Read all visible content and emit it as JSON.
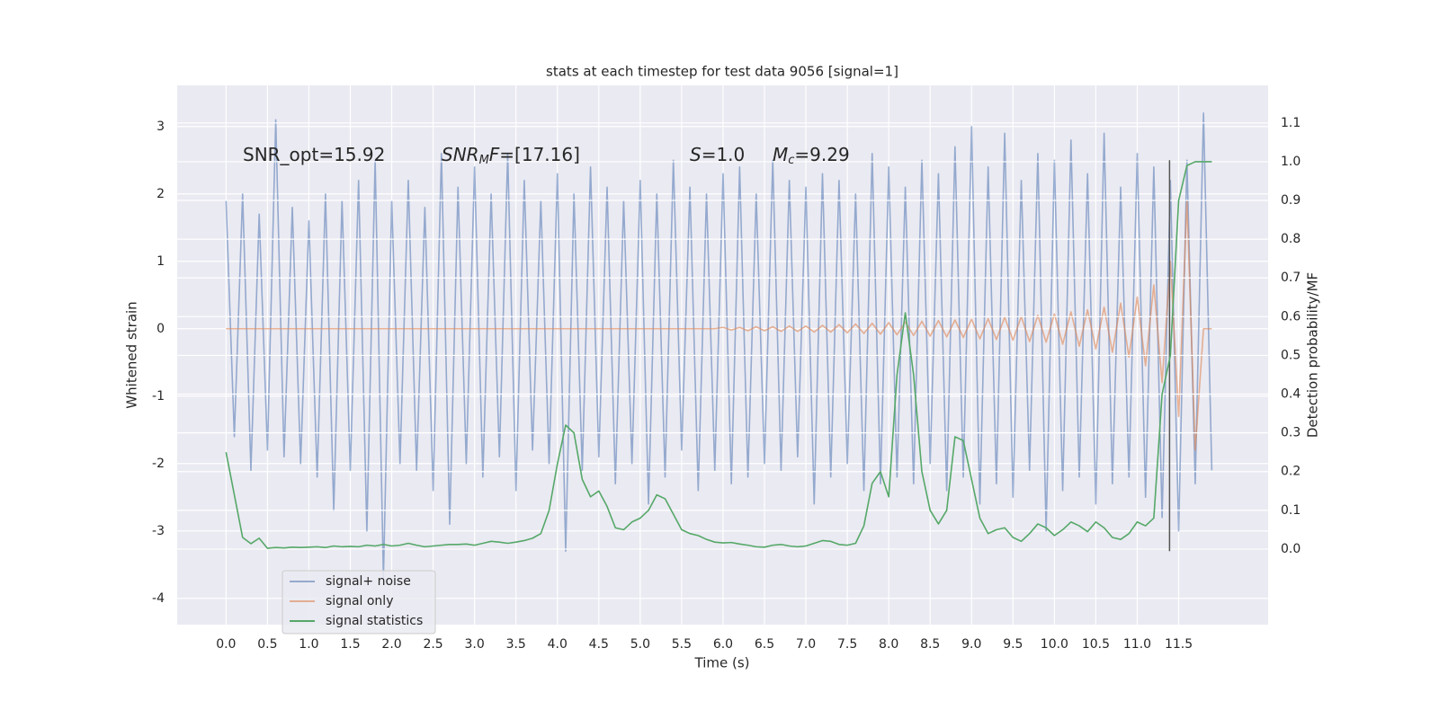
{
  "chart_data": {
    "type": "line",
    "title": "stats at each timestep for test data 9056 [signal=1]",
    "xlabel": "Time (s)",
    "ylabel": "Whitened strain",
    "y2label": "Detection probability/MF",
    "annotations": [
      [
        {
          "text": "SNR_opt=15.92"
        }
      ],
      [
        {
          "text": "SNR",
          "style": "italic"
        },
        {
          "text": "M",
          "style": "sub"
        },
        {
          "text": "F",
          "style": "italic"
        },
        {
          "text": "=[17.16]"
        }
      ],
      [
        {
          "text": "S",
          "style": "italic"
        },
        {
          "text": "=1.0"
        }
      ],
      [
        {
          "text": "M",
          "style": "italic"
        },
        {
          "text": "c",
          "style": "sub"
        },
        {
          "text": "=9.29"
        }
      ]
    ],
    "x": [
      0.0,
      0.1,
      0.2,
      0.3,
      0.4,
      0.5,
      0.6,
      0.7,
      0.8,
      0.9,
      1.0,
      1.1,
      1.2,
      1.3,
      1.4,
      1.5,
      1.6,
      1.7,
      1.8,
      1.9,
      2.0,
      2.1,
      2.2,
      2.3,
      2.4,
      2.5,
      2.6,
      2.7,
      2.8,
      2.9,
      3.0,
      3.1,
      3.2,
      3.3,
      3.4,
      3.5,
      3.6,
      3.7,
      3.8,
      3.9,
      4.0,
      4.1,
      4.2,
      4.3,
      4.4,
      4.5,
      4.6,
      4.7,
      4.8,
      4.9,
      5.0,
      5.1,
      5.2,
      5.3,
      5.4,
      5.5,
      5.6,
      5.7,
      5.8,
      5.9,
      6.0,
      6.1,
      6.2,
      6.3,
      6.4,
      6.5,
      6.6,
      6.7,
      6.8,
      6.9,
      7.0,
      7.1,
      7.2,
      7.3,
      7.4,
      7.5,
      7.6,
      7.7,
      7.8,
      7.9,
      8.0,
      8.1,
      8.2,
      8.3,
      8.4,
      8.5,
      8.6,
      8.7,
      8.8,
      8.9,
      9.0,
      9.1,
      9.2,
      9.3,
      9.4,
      9.5,
      9.6,
      9.7,
      9.8,
      9.9,
      10.0,
      10.1,
      10.2,
      10.3,
      10.4,
      10.5,
      10.6,
      10.7,
      10.8,
      10.9,
      11.0,
      11.1,
      11.2,
      11.3,
      11.4,
      11.5,
      11.6,
      11.7,
      11.8,
      11.9
    ],
    "series": [
      {
        "name": "signal+ noise",
        "color": "#4c72b0",
        "opacity": 0.55,
        "values": [
          1.9,
          -1.6,
          2.0,
          -2.1,
          1.7,
          -1.8,
          3.1,
          -1.9,
          1.8,
          -2.0,
          1.6,
          -2.2,
          2.0,
          -2.7,
          1.9,
          -2.1,
          2.2,
          -3.0,
          2.5,
          -3.7,
          1.9,
          -2.0,
          2.2,
          -2.1,
          1.8,
          -2.4,
          2.6,
          -2.9,
          2.1,
          -2.0,
          2.4,
          -2.2,
          2.0,
          -1.9,
          2.6,
          -2.4,
          2.2,
          -1.8,
          1.9,
          -2.0,
          2.3,
          -3.3,
          2.0,
          -2.1,
          2.4,
          -1.9,
          2.1,
          -2.3,
          1.9,
          -2.0,
          2.2,
          -2.6,
          2.0,
          -2.2,
          2.5,
          -1.8,
          2.1,
          -2.4,
          2.0,
          -2.1,
          2.3,
          -2.3,
          2.4,
          -2.2,
          2.0,
          -2.0,
          2.5,
          -2.1,
          2.2,
          -1.9,
          2.1,
          -2.6,
          2.3,
          -2.2,
          2.2,
          -2.0,
          2.0,
          -2.4,
          2.6,
          -2.3,
          2.4,
          -2.2,
          2.1,
          -2.3,
          2.5,
          -2.0,
          2.3,
          -2.4,
          2.7,
          -2.2,
          3.0,
          -2.6,
          2.4,
          -2.3,
          2.9,
          -2.5,
          2.2,
          -2.1,
          2.6,
          -3.0,
          2.5,
          -2.4,
          2.8,
          -2.2,
          2.3,
          -2.6,
          2.9,
          -2.3,
          2.1,
          -2.2,
          2.6,
          -2.5,
          2.4,
          -2.8,
          2.2,
          -3.0,
          2.5,
          -2.3,
          3.2,
          -2.1
        ]
      },
      {
        "name": "signal only",
        "color": "#dd8452",
        "opacity": 0.6,
        "values": [
          0,
          0,
          0,
          0,
          0,
          0,
          0,
          0,
          0,
          0,
          0,
          0,
          0,
          0,
          0,
          0,
          0,
          0,
          0,
          0,
          0,
          0,
          0,
          0,
          0,
          0,
          0,
          0,
          0,
          0,
          0,
          0,
          0,
          0,
          0,
          0,
          0,
          0,
          0,
          0,
          0,
          0,
          0,
          0,
          0,
          0,
          0,
          0,
          0,
          0,
          0,
          0,
          0,
          0,
          0,
          0,
          0,
          0,
          0,
          0,
          0.02,
          -0.02,
          0.02,
          -0.03,
          0.03,
          -0.03,
          0.03,
          -0.04,
          0.04,
          -0.04,
          0.04,
          -0.05,
          0.05,
          -0.05,
          0.06,
          -0.06,
          0.07,
          -0.07,
          0.08,
          -0.08,
          0.09,
          -0.09,
          0.1,
          -0.1,
          0.11,
          -0.11,
          0.12,
          -0.12,
          0.13,
          -0.13,
          0.14,
          -0.15,
          0.15,
          -0.16,
          0.17,
          -0.17,
          0.18,
          -0.19,
          0.2,
          -0.2,
          0.22,
          -0.23,
          0.25,
          -0.26,
          0.28,
          -0.3,
          0.32,
          -0.35,
          0.38,
          -0.42,
          0.47,
          -0.55,
          0.65,
          -0.8,
          1.0,
          -1.3,
          1.9,
          -1.8,
          0,
          0
        ]
      },
      {
        "name": "signal statistics",
        "color": "#55a868",
        "axis": "y2",
        "opacity": 1,
        "values": [
          0.25,
          0.14,
          0.03,
          0.014,
          0.028,
          0.002,
          0.004,
          0.003,
          0.005,
          0.004,
          0.005,
          0.006,
          0.004,
          0.008,
          0.006,
          0.007,
          0.006,
          0.01,
          0.008,
          0.012,
          0.008,
          0.01,
          0.015,
          0.01,
          0.006,
          0.008,
          0.01,
          0.012,
          0.012,
          0.013,
          0.01,
          0.015,
          0.02,
          0.018,
          0.015,
          0.018,
          0.022,
          0.028,
          0.04,
          0.1,
          0.22,
          0.32,
          0.3,
          0.18,
          0.135,
          0.15,
          0.11,
          0.055,
          0.05,
          0.07,
          0.08,
          0.1,
          0.14,
          0.13,
          0.09,
          0.05,
          0.04,
          0.035,
          0.025,
          0.018,
          0.016,
          0.017,
          0.013,
          0.01,
          0.006,
          0.005,
          0.01,
          0.012,
          0.008,
          0.006,
          0.008,
          0.015,
          0.022,
          0.02,
          0.012,
          0.01,
          0.015,
          0.06,
          0.17,
          0.2,
          0.135,
          0.45,
          0.61,
          0.45,
          0.2,
          0.1,
          0.065,
          0.1,
          0.29,
          0.28,
          0.18,
          0.08,
          0.04,
          0.05,
          0.055,
          0.03,
          0.02,
          0.04,
          0.065,
          0.055,
          0.035,
          0.05,
          0.07,
          0.06,
          0.045,
          0.07,
          0.055,
          0.03,
          0.025,
          0.04,
          0.07,
          0.06,
          0.08,
          0.4,
          0.5,
          0.9,
          0.99,
          1.0,
          1.0,
          1.0
        ]
      }
    ],
    "vline": {
      "x": 11.39,
      "y": [
        -3.3,
        2.5
      ],
      "color": "#555555"
    },
    "xlim": [
      -0.59,
      12.58
    ],
    "xticks": [
      {
        "value": 0,
        "label": "0.0"
      },
      0.5,
      {
        "value": 1,
        "label": "1.0"
      },
      1.5,
      {
        "value": 2,
        "label": "2.0"
      },
      2.5,
      {
        "value": 3,
        "label": "3.0"
      },
      3.5,
      {
        "value": 4,
        "label": "4.0"
      },
      4.5,
      {
        "value": 5,
        "label": "5.0"
      },
      5.5,
      {
        "value": 6,
        "label": "6.0"
      },
      6.5,
      {
        "value": 7,
        "label": "7.0"
      },
      7.5,
      {
        "value": 8,
        "label": "8.0"
      },
      8.5,
      {
        "value": 9,
        "label": "9.0"
      },
      9.5,
      {
        "value": 10,
        "label": "10.0"
      },
      10.5,
      {
        "value": 11,
        "label": "11.0"
      },
      11.5
    ],
    "ylim": [
      -4.39,
      3.61
    ],
    "yticks": [
      -4,
      -3,
      -2,
      -1,
      0,
      1,
      2,
      3
    ],
    "y2lim": [
      -0.195,
      1.197
    ],
    "y2ticks": [
      {
        "value": 0,
        "label": "0.0"
      },
      0.1,
      0.2,
      0.3,
      0.4,
      0.5,
      0.6,
      0.7,
      0.8,
      0.9,
      {
        "value": 1,
        "label": "1.0"
      },
      1.1
    ],
    "grid": true,
    "legend": "lower left"
  }
}
